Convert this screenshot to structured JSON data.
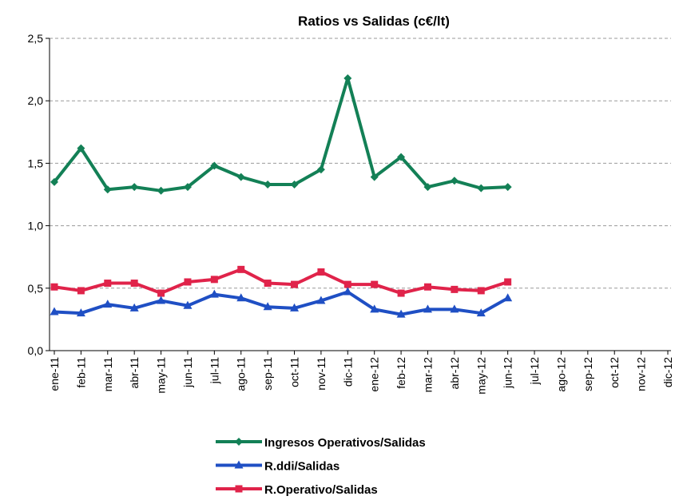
{
  "chart_data": {
    "type": "line",
    "title": "Ratios vs Salidas (c€/lt)",
    "categories": [
      "ene-11",
      "feb-11",
      "mar-11",
      "abr-11",
      "may-11",
      "jun-11",
      "jul-11",
      "ago-11",
      "sep-11",
      "oct-11",
      "nov-11",
      "dic-11",
      "ene-12",
      "feb-12",
      "mar-12",
      "abr-12",
      "may-12",
      "jun-12",
      "jul-12",
      "ago-12",
      "sep-12",
      "oct-12",
      "nov-12",
      "dic-12"
    ],
    "series": [
      {
        "name": "Ingresos Operativos/Salidas",
        "color": "#138056",
        "marker": "diamond",
        "values": [
          1.35,
          1.62,
          1.29,
          1.31,
          1.28,
          1.31,
          1.48,
          1.39,
          1.33,
          1.33,
          1.45,
          2.18,
          1.39,
          1.55,
          1.31,
          1.36,
          1.3,
          1.31,
          null,
          null,
          null,
          null,
          null,
          null
        ]
      },
      {
        "name": "R.ddi/Salidas",
        "color": "#1f4fc4",
        "marker": "triangle",
        "values": [
          0.31,
          0.3,
          0.37,
          0.34,
          0.4,
          0.36,
          0.45,
          0.42,
          0.35,
          0.34,
          0.4,
          0.47,
          0.33,
          0.29,
          0.33,
          0.33,
          0.3,
          0.42,
          null,
          null,
          null,
          null,
          null,
          null
        ]
      },
      {
        "name": "R.Operativo/Salidas",
        "color": "#e0234a",
        "marker": "square",
        "values": [
          0.51,
          0.48,
          0.54,
          0.54,
          0.46,
          0.55,
          0.57,
          0.65,
          0.54,
          0.53,
          0.63,
          0.53,
          0.53,
          0.46,
          0.51,
          0.49,
          0.48,
          0.55,
          null,
          null,
          null,
          null,
          null,
          null
        ]
      }
    ],
    "ylim": [
      0,
      2.5
    ],
    "yticks": [
      {
        "value": 0,
        "label": "0,0"
      },
      {
        "value": 0.5,
        "label": "0,5"
      },
      {
        "value": 1,
        "label": "1,0"
      },
      {
        "value": 1.5,
        "label": "1,5"
      },
      {
        "value": 2,
        "label": "2,0"
      },
      {
        "value": 2.5,
        "label": "2,5"
      }
    ],
    "grid": true,
    "legend": "bottom"
  }
}
